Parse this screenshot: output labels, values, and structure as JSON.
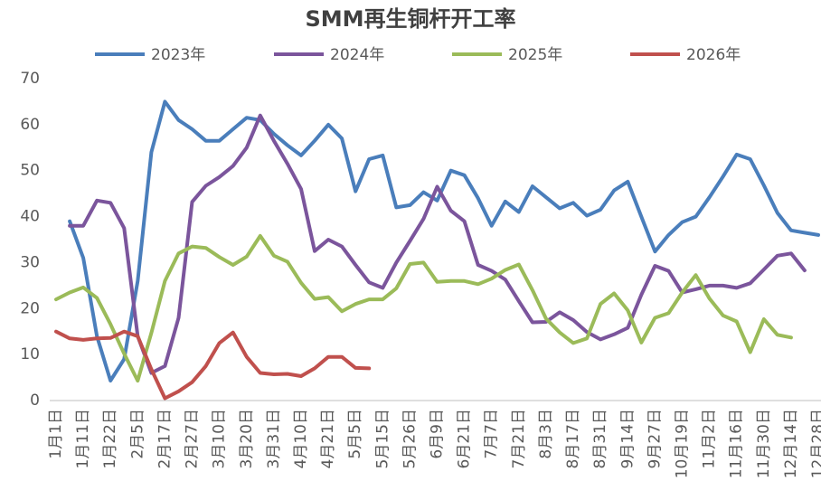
{
  "chart_data": {
    "type": "line",
    "title": "SMM再生铜杆开工率",
    "categories": [
      "1月1日",
      null,
      "1月11日",
      null,
      "1月22日",
      null,
      "2月5日",
      null,
      "2月17日",
      null,
      "2月27日",
      null,
      "3月10日",
      null,
      "3月20日",
      null,
      "3月31日",
      null,
      "4月10日",
      null,
      "4月21日",
      null,
      "5月5日",
      null,
      "5月15日",
      null,
      "5月26日",
      null,
      "6月9日",
      null,
      "6月21日",
      null,
      "7月7日",
      null,
      "7月21日",
      null,
      "8月3日",
      null,
      "8月17日",
      null,
      "8月31日",
      null,
      "9月14日",
      null,
      "9月27日",
      null,
      "10月19日",
      null,
      "11月2日",
      null,
      "11月16日",
      null,
      "11月30日",
      null,
      "12月14日",
      null,
      "12月28日"
    ],
    "series": [
      {
        "name": "2023年",
        "color": "#4a7ebb",
        "values": [
          null,
          39,
          31,
          14,
          4.3,
          9,
          26,
          54,
          65,
          61,
          59,
          56.5,
          56.5,
          59,
          61.5,
          61,
          58,
          55.5,
          53.3,
          56.5,
          60,
          57,
          45.5,
          52.5,
          53.3,
          42,
          42.5,
          45.3,
          43.5,
          50,
          49,
          44,
          38,
          43.3,
          41,
          46.6,
          44.2,
          41.8,
          43,
          40.2,
          41.5,
          45.7,
          47.6,
          40,
          32.4,
          36,
          38.8,
          40,
          44.2,
          48.7,
          53.5,
          52.5,
          46.8,
          40.8,
          37,
          36.5,
          36
        ]
      },
      {
        "name": "2024年",
        "color": "#7b559c",
        "values": [
          null,
          38,
          38,
          43.5,
          43,
          37.5,
          14,
          6,
          7.5,
          18,
          43.2,
          46.7,
          48.6,
          51,
          55,
          62,
          56.5,
          51.5,
          46,
          32.5,
          35,
          33.5,
          29.5,
          25.7,
          24.5,
          30,
          34.7,
          39.5,
          46.5,
          41.3,
          39,
          29.5,
          28.2,
          26.3,
          21.6,
          17,
          17.1,
          19.2,
          17.5,
          14.9,
          13.3,
          14.4,
          15.8,
          23,
          29.3,
          28.2,
          23.5,
          24.2,
          25,
          25,
          24.5,
          25.5,
          28.5,
          31.5,
          32,
          28.3,
          null
        ]
      },
      {
        "name": "2025年",
        "color": "#9bbb59",
        "values": [
          22,
          23.5,
          24.6,
          22.3,
          16.6,
          10.2,
          4.3,
          14.7,
          26,
          32,
          33.5,
          33.2,
          31.2,
          29.5,
          31.3,
          35.8,
          31.5,
          30.2,
          25.6,
          22.1,
          22.5,
          19.4,
          21,
          22,
          22,
          24.4,
          29.7,
          30,
          25.8,
          26,
          26,
          25.3,
          26.5,
          28.4,
          29.6,
          24,
          17.8,
          14.8,
          12.5,
          13.5,
          21,
          23.3,
          19.6,
          12.6,
          18,
          19,
          23.5,
          27.3,
          22.2,
          18.5,
          17.2,
          10.5,
          17.7,
          14.3,
          13.7,
          null,
          null
        ]
      },
      {
        "name": "2026年",
        "color": "#c0504d",
        "values": [
          15,
          13.5,
          13.2,
          13.5,
          13.6,
          15,
          14,
          6.8,
          0.5,
          2,
          4,
          7.5,
          12.5,
          14.8,
          9.5,
          6,
          5.7,
          5.8,
          5.3,
          7,
          9.5,
          9.5,
          7.1,
          7,
          null,
          null,
          null,
          null,
          null,
          null,
          null,
          null,
          null,
          null,
          null,
          null,
          null,
          null,
          null,
          null,
          null,
          null,
          null,
          null,
          null,
          null,
          null,
          null,
          null,
          null,
          null,
          null,
          null,
          null,
          null,
          null,
          null
        ]
      }
    ],
    "ylim": [
      0,
      70
    ],
    "yticks": [
      0,
      10,
      20,
      30,
      40,
      50,
      60,
      70
    ],
    "grid": false,
    "legend": "top"
  }
}
